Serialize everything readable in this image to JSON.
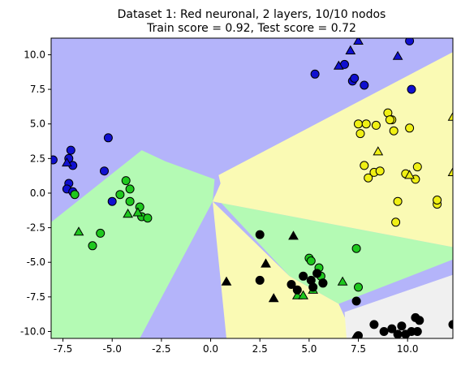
{
  "chart_data": {
    "type": "scatter",
    "title_line1": "Dataset 1: Red neuronal, 2 layers, 10/10 nodos",
    "title_line2": "Train score = 0.92, Test score = 0.72",
    "xlabel": "",
    "ylabel": "",
    "xlim": [
      -8.1,
      12.3
    ],
    "ylim": [
      -10.5,
      11.2
    ],
    "xticks": [
      "-7.5",
      "-5.0",
      "-2.5",
      "0.0",
      "2.5",
      "5.0",
      "7.5",
      "10.0"
    ],
    "xtick_values": [
      -7.5,
      -5.0,
      -2.5,
      0.0,
      2.5,
      5.0,
      7.5,
      10.0
    ],
    "yticks": [
      "-10.0",
      "-7.5",
      "-5.0",
      "-2.5",
      "0.0",
      "2.5",
      "5.0",
      "7.5",
      "10.0"
    ],
    "ytick_values": [
      -10.0,
      -7.5,
      -5.0,
      -2.5,
      0.0,
      2.5,
      5.0,
      7.5,
      10.0
    ],
    "grid": false,
    "legend": "none",
    "marker_legend": {
      "circle": "train",
      "triangle": "test"
    },
    "class_colors": {
      "blue": "#1010d0",
      "green": "#1ec81e",
      "yellow": "#f0f014",
      "black": "#000000"
    },
    "region_colors": {
      "blue": "#b4b4fa",
      "green": "#b4fab4",
      "yellow": "#fafab4",
      "black": "#f0f0f0"
    },
    "decision_regions": [
      {
        "class": "blue",
        "polygon": [
          [
            -8.1,
            11.2
          ],
          [
            12.3,
            11.2
          ],
          [
            12.3,
            10.2
          ],
          [
            0.4,
            1.3
          ],
          [
            0.2,
            1.0
          ],
          [
            -2.3,
            2.3
          ],
          [
            -3.5,
            3.1
          ],
          [
            -8.1,
            -2.1
          ]
        ]
      },
      {
        "class": "blue",
        "polygon": [
          [
            -3.6,
            -10.5
          ],
          [
            0.8,
            -10.5
          ],
          [
            0.1,
            -0.6
          ]
        ]
      },
      {
        "class": "green",
        "polygon": [
          [
            -8.1,
            -2.1
          ],
          [
            -3.5,
            3.1
          ],
          [
            -2.3,
            2.3
          ],
          [
            0.2,
            1.0
          ],
          [
            0.1,
            -0.6
          ],
          [
            -3.6,
            -10.5
          ],
          [
            -8.1,
            -10.5
          ]
        ]
      },
      {
        "class": "green",
        "polygon": [
          [
            0.1,
            -0.6
          ],
          [
            12.3,
            -3.9
          ],
          [
            12.3,
            -4.8
          ],
          [
            6.5,
            -8.0
          ],
          [
            4.0,
            -6.0
          ],
          [
            0.2,
            -0.2
          ]
        ]
      },
      {
        "class": "yellow",
        "polygon": [
          [
            0.4,
            1.3
          ],
          [
            12.3,
            10.2
          ],
          [
            12.3,
            -3.9
          ],
          [
            0.1,
            -0.6
          ],
          [
            0.5,
            0.7
          ]
        ]
      },
      {
        "class": "yellow",
        "polygon": [
          [
            0.1,
            -0.6
          ],
          [
            4.0,
            -6.0
          ],
          [
            6.5,
            -8.0
          ],
          [
            7.3,
            -10.5
          ],
          [
            0.8,
            -10.5
          ]
        ]
      },
      {
        "class": "black",
        "polygon": [
          [
            6.8,
            -8.6
          ],
          [
            12.3,
            -5.9
          ],
          [
            12.3,
            -10.5
          ],
          [
            6.9,
            -10.5
          ]
        ]
      }
    ],
    "series": [
      {
        "class": "blue",
        "marker": "circle",
        "x": [
          -8.0,
          -7.1,
          -7.2,
          -7.0,
          -7.2,
          -7.3,
          -7.0,
          -5.4,
          -5.2,
          -5.0,
          5.3,
          6.8,
          7.2,
          7.3,
          7.8,
          10.1,
          10.2
        ],
        "y": [
          2.4,
          3.1,
          2.5,
          2.0,
          0.7,
          0.3,
          0.1,
          1.6,
          4.0,
          -0.6,
          8.6,
          9.3,
          8.1,
          8.3,
          7.8,
          11.0,
          7.5
        ]
      },
      {
        "class": "blue",
        "marker": "triangle",
        "x": [
          -7.3,
          6.5,
          7.1,
          7.5,
          9.5
        ],
        "y": [
          2.2,
          9.2,
          10.3,
          11.0,
          9.9
        ]
      },
      {
        "class": "green",
        "marker": "circle",
        "x": [
          -6.9,
          -6.0,
          -5.6,
          -4.6,
          -4.3,
          -4.1,
          -4.1,
          -3.6,
          -3.5,
          -3.2,
          5.0,
          5.1,
          5.5,
          5.6,
          5.7,
          7.4,
          7.5
        ],
        "y": [
          -0.1,
          -3.8,
          -2.9,
          -0.1,
          0.9,
          -0.6,
          0.3,
          -1.0,
          -1.7,
          -1.8,
          -4.7,
          -4.9,
          -5.4,
          -6.0,
          -6.5,
          -4.0,
          -6.8
        ]
      },
      {
        "class": "green",
        "marker": "triangle",
        "x": [
          -6.7,
          -4.2,
          -3.7,
          4.4,
          4.7,
          5.2,
          6.7
        ],
        "y": [
          -2.8,
          -1.5,
          -1.4,
          -7.4,
          -7.4,
          -7.0,
          -6.4
        ]
      },
      {
        "class": "yellow",
        "marker": "circle",
        "x": [
          7.5,
          7.6,
          7.8,
          7.9,
          8.0,
          8.3,
          8.4,
          8.6,
          9.0,
          9.2,
          9.1,
          9.3,
          9.4,
          9.5,
          9.9,
          10.1,
          10.4,
          10.5,
          11.5,
          11.5
        ],
        "y": [
          5.0,
          4.3,
          2.0,
          5.0,
          1.1,
          1.5,
          4.9,
          1.6,
          5.8,
          5.3,
          5.3,
          4.5,
          -2.1,
          -0.6,
          1.4,
          4.7,
          1.0,
          1.9,
          -0.8,
          -0.5
        ]
      },
      {
        "class": "yellow",
        "marker": "triangle",
        "x": [
          8.5,
          10.1,
          12.3,
          12.3
        ],
        "y": [
          3.0,
          1.3,
          5.5,
          1.5
        ]
      },
      {
        "class": "black",
        "marker": "circle",
        "x": [
          2.5,
          2.5,
          4.1,
          4.4,
          4.7,
          5.1,
          5.2,
          5.4,
          5.7,
          7.4,
          7.5,
          8.3,
          8.8,
          9.2,
          9.5,
          9.7,
          9.9,
          10.2,
          10.4,
          10.5,
          10.6,
          12.3
        ],
        "y": [
          -3.0,
          -6.3,
          -6.6,
          -7.0,
          -6.0,
          -6.3,
          -6.8,
          -5.8,
          -6.5,
          -7.8,
          -10.3,
          -9.5,
          -10.0,
          -9.8,
          -10.2,
          -9.6,
          -10.2,
          -10.0,
          -9.0,
          -10.0,
          -9.2,
          -9.5
        ]
      },
      {
        "class": "black",
        "marker": "triangle",
        "x": [
          0.8,
          2.8,
          3.2,
          4.2,
          7.3
        ],
        "y": [
          -6.4,
          -5.1,
          -7.6,
          -3.1,
          -10.5
        ]
      }
    ]
  }
}
